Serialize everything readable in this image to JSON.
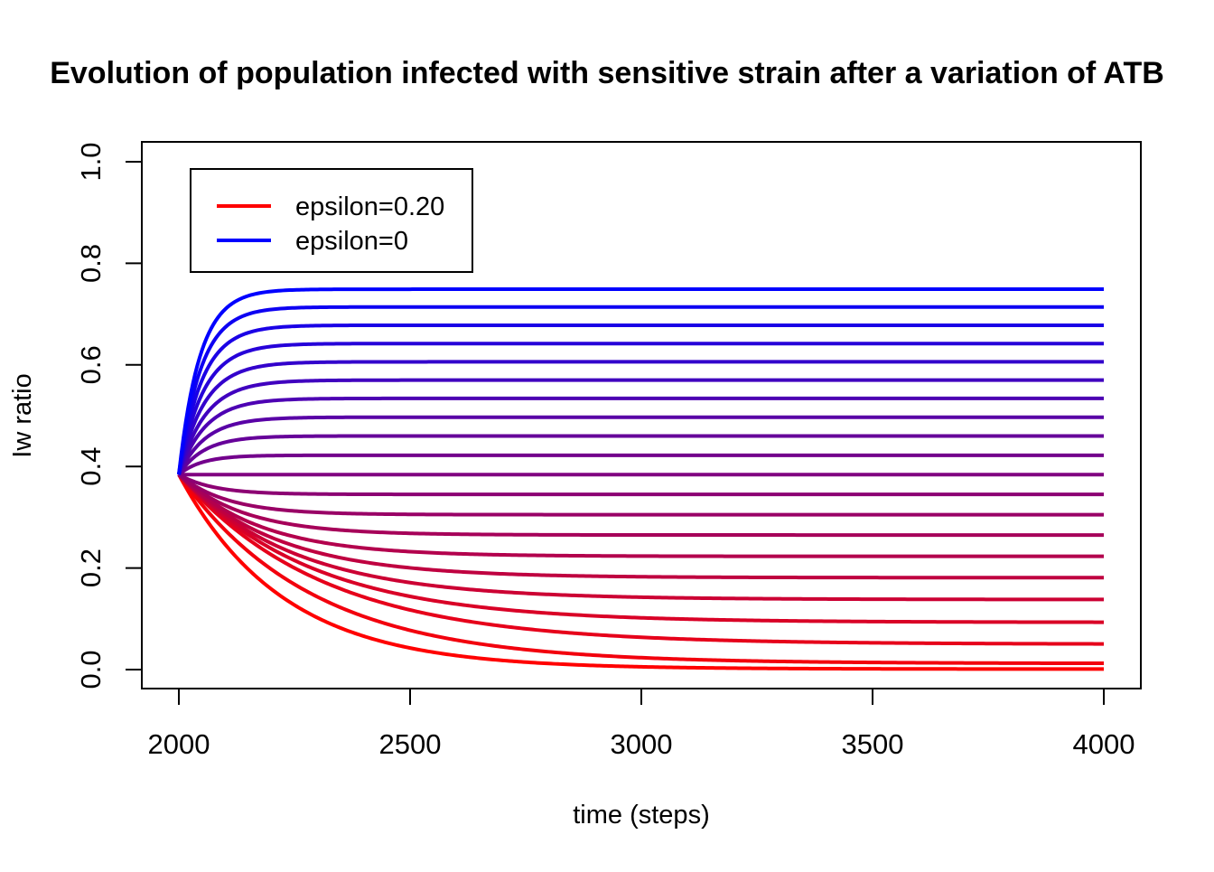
{
  "chart_data": {
    "type": "line",
    "title": "Evolution of population infected with sensitive strain after a variation of  ATB",
    "xlabel": "time (steps)",
    "ylabel": "Iw ratio",
    "xlim": [
      2000,
      4000
    ],
    "ylim": [
      0.0,
      1.0
    ],
    "x_ticks": [
      2000,
      2500,
      3000,
      3500,
      4000
    ],
    "x_tick_labels": [
      "2000",
      "2500",
      "3000",
      "3500",
      "4000"
    ],
    "y_ticks": [
      0.0,
      0.2,
      0.4,
      0.6,
      0.8,
      1.0
    ],
    "y_tick_labels": [
      "0.0",
      "0.2",
      "0.4",
      "0.6",
      "0.8",
      "1.0"
    ],
    "grid": false,
    "legend": {
      "placement": "top-left",
      "entries": [
        {
          "label": "epsilon=0.20",
          "color": "#ff0000"
        },
        {
          "label": "epsilon=0",
          "color": "#0000ff"
        }
      ]
    },
    "colors": {
      "start": "#ff0000",
      "end": "#0000ff"
    },
    "initial_value": 0.384,
    "series_final_values": [
      0.001,
      0.012,
      0.05,
      0.093,
      0.138,
      0.181,
      0.223,
      0.265,
      0.305,
      0.345,
      0.384,
      0.422,
      0.46,
      0.497,
      0.534,
      0.57,
      0.606,
      0.642,
      0.678,
      0.714,
      0.749
    ],
    "series_settle_times": [
      900,
      1150,
      1250,
      1150,
      1000,
      850,
      700,
      560,
      420,
      300,
      0,
      200,
      220,
      230,
      230,
      230,
      220,
      210,
      200,
      190,
      180
    ]
  }
}
